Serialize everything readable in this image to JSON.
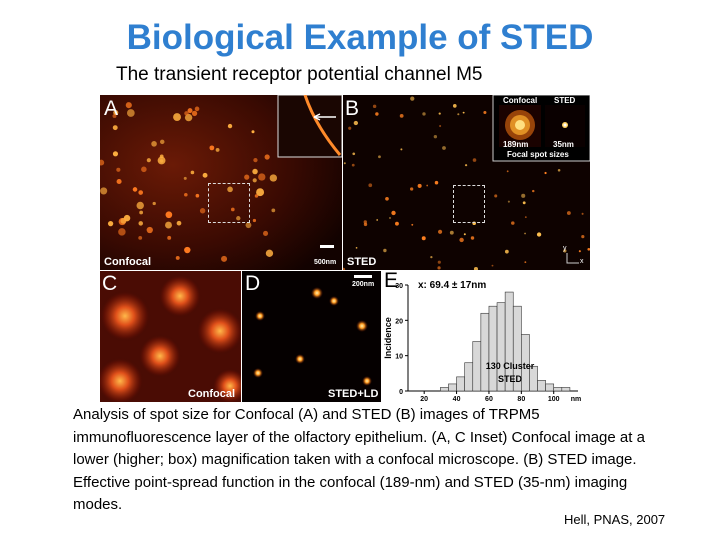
{
  "slide": {
    "title": "Biological Example of STED",
    "subtitle": "The transient receptor potential channel M5"
  },
  "figure": {
    "panel_a": {
      "letter": "A",
      "label": "Confocal",
      "scale": "500nm"
    },
    "panel_b": {
      "letter": "B",
      "label": "STED",
      "inset_confocal": "Confocal",
      "inset_sted": "STED",
      "inset_confocal_size": "189nm",
      "inset_sted_size": "35nm",
      "inset_caption": "Focal spot sizes",
      "axis_y": "y",
      "axis_x": "x"
    },
    "panel_c": {
      "letter": "C",
      "label": "Confocal"
    },
    "panel_d": {
      "letter": "D",
      "label": "STED+LD",
      "scale": "200nm"
    },
    "panel_e": {
      "letter": "E"
    }
  },
  "chart_data": {
    "type": "bar",
    "annotation": "x: 69.4 ± 17nm",
    "cluster_label_1": "130 Cluster",
    "cluster_label_2": "STED",
    "ylabel": "Incidence",
    "xunit": "nm",
    "xticks": [
      "20",
      "40",
      "60",
      "80",
      "100"
    ],
    "yticks": [
      "0",
      "10",
      "20",
      "30"
    ],
    "xlim": [
      10,
      115
    ],
    "ylim": [
      0,
      30
    ],
    "bin_starts": [
      15,
      20,
      25,
      30,
      35,
      40,
      45,
      50,
      55,
      60,
      65,
      70,
      75,
      80,
      85,
      90,
      95,
      100,
      105
    ],
    "bin_width": 5,
    "values": [
      0,
      0,
      0,
      1,
      2,
      4,
      8,
      14,
      22,
      24,
      25,
      28,
      24,
      16,
      7,
      3,
      2,
      1,
      1
    ]
  },
  "caption": "Analysis of spot size for Confocal (A) and STED (B) images of TRPM5 immunofluorescence layer of the olfactory epithelium. (A, C Inset) Confocal image at a lower (higher; box) magnification taken with a confocal microscope. (B) STED image. Effective point-spread function in the confocal (189-nm) and STED (35-nm) imaging modes.",
  "credit": "Hell, PNAS, 2007",
  "colors": {
    "title": "#2f7fd0",
    "hot": "#ff9a2a",
    "bars": "#d8d8d8"
  }
}
